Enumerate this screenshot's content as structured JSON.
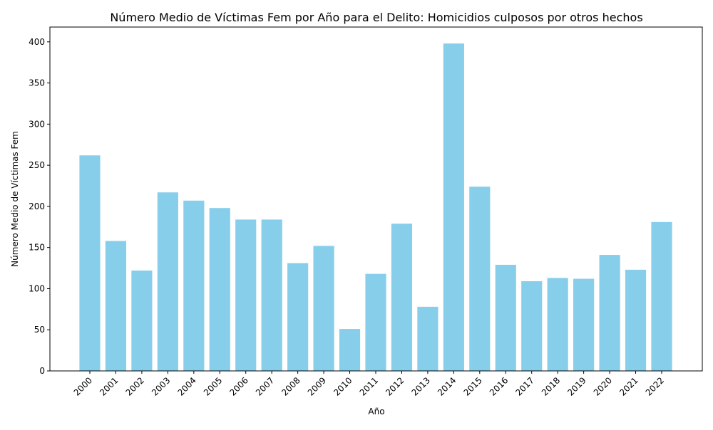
{
  "chart_data": {
    "type": "bar",
    "title": "Número Medio de Víctimas Fem por Año para el Delito: Homicidios culposos por otros hechos",
    "xlabel": "Año",
    "ylabel": "Número Medio de Víctimas Fem",
    "categories": [
      "2000",
      "2001",
      "2002",
      "2003",
      "2004",
      "2005",
      "2006",
      "2007",
      "2008",
      "2009",
      "2010",
      "2011",
      "2012",
      "2013",
      "2014",
      "2015",
      "2016",
      "2017",
      "2018",
      "2019",
      "2020",
      "2021",
      "2022"
    ],
    "values": [
      262,
      158,
      122,
      217,
      207,
      198,
      184,
      184,
      131,
      152,
      51,
      118,
      179,
      78,
      398,
      224,
      129,
      109,
      113,
      112,
      141,
      123,
      181
    ],
    "ylim": [
      0,
      418
    ],
    "yticks": [
      0,
      50,
      100,
      150,
      200,
      250,
      300,
      350,
      400
    ],
    "ytick_labels": [
      "0",
      "50",
      "100",
      "150",
      "200",
      "250",
      "300",
      "350",
      "400"
    ],
    "bar_color": "#87CEEB",
    "grid": false,
    "legend": "none"
  }
}
